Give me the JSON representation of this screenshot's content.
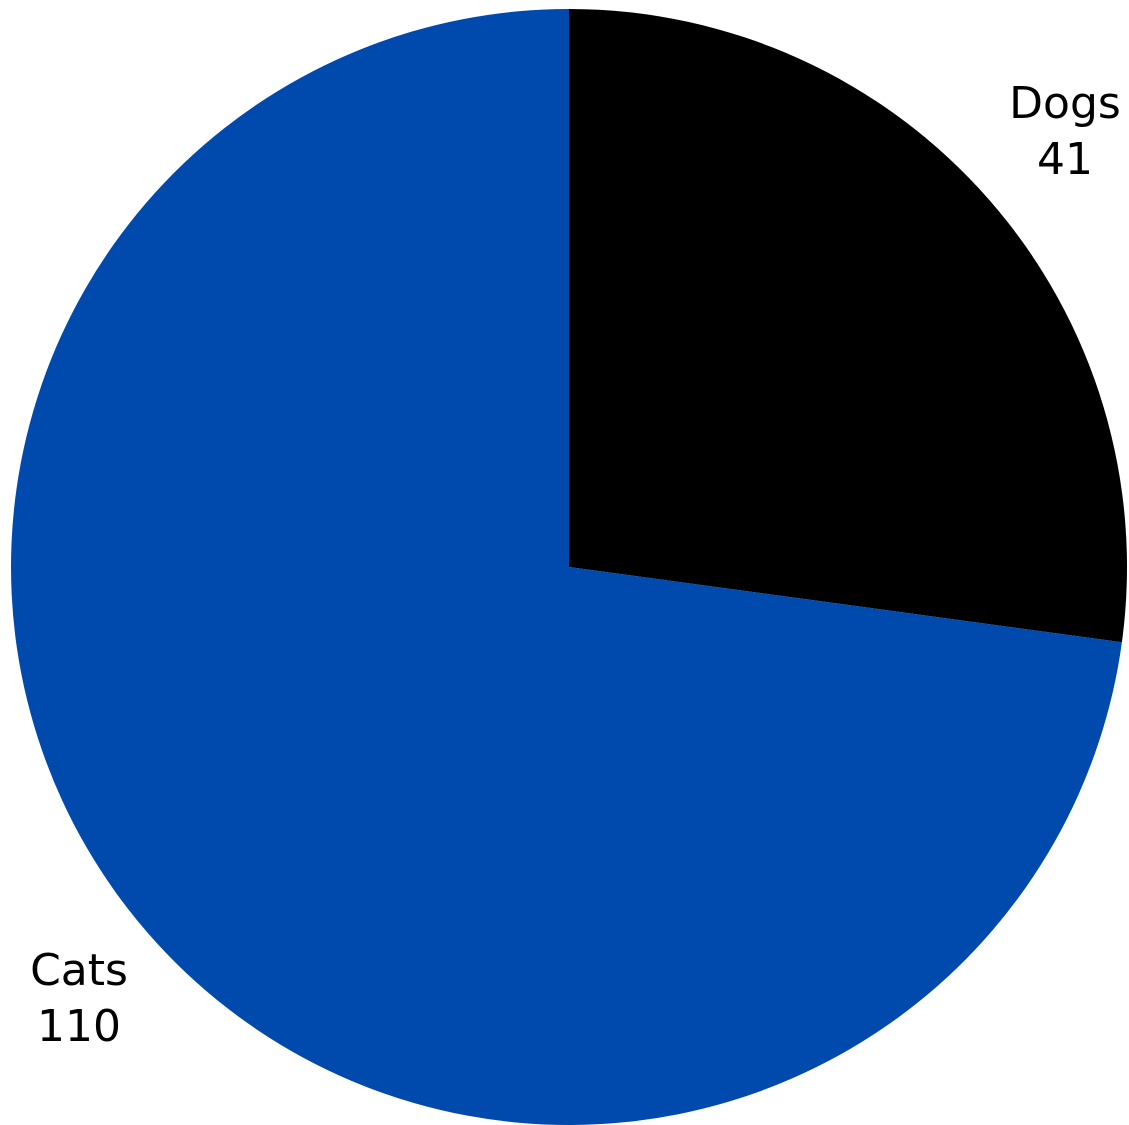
{
  "chart_data": {
    "type": "pie",
    "categories": [
      "Dogs",
      "Cats"
    ],
    "values": [
      41,
      110
    ],
    "colors": [
      "#000000",
      "#004aad"
    ],
    "start_angle_deg": 0,
    "direction": "clockwise",
    "legend": "none"
  }
}
